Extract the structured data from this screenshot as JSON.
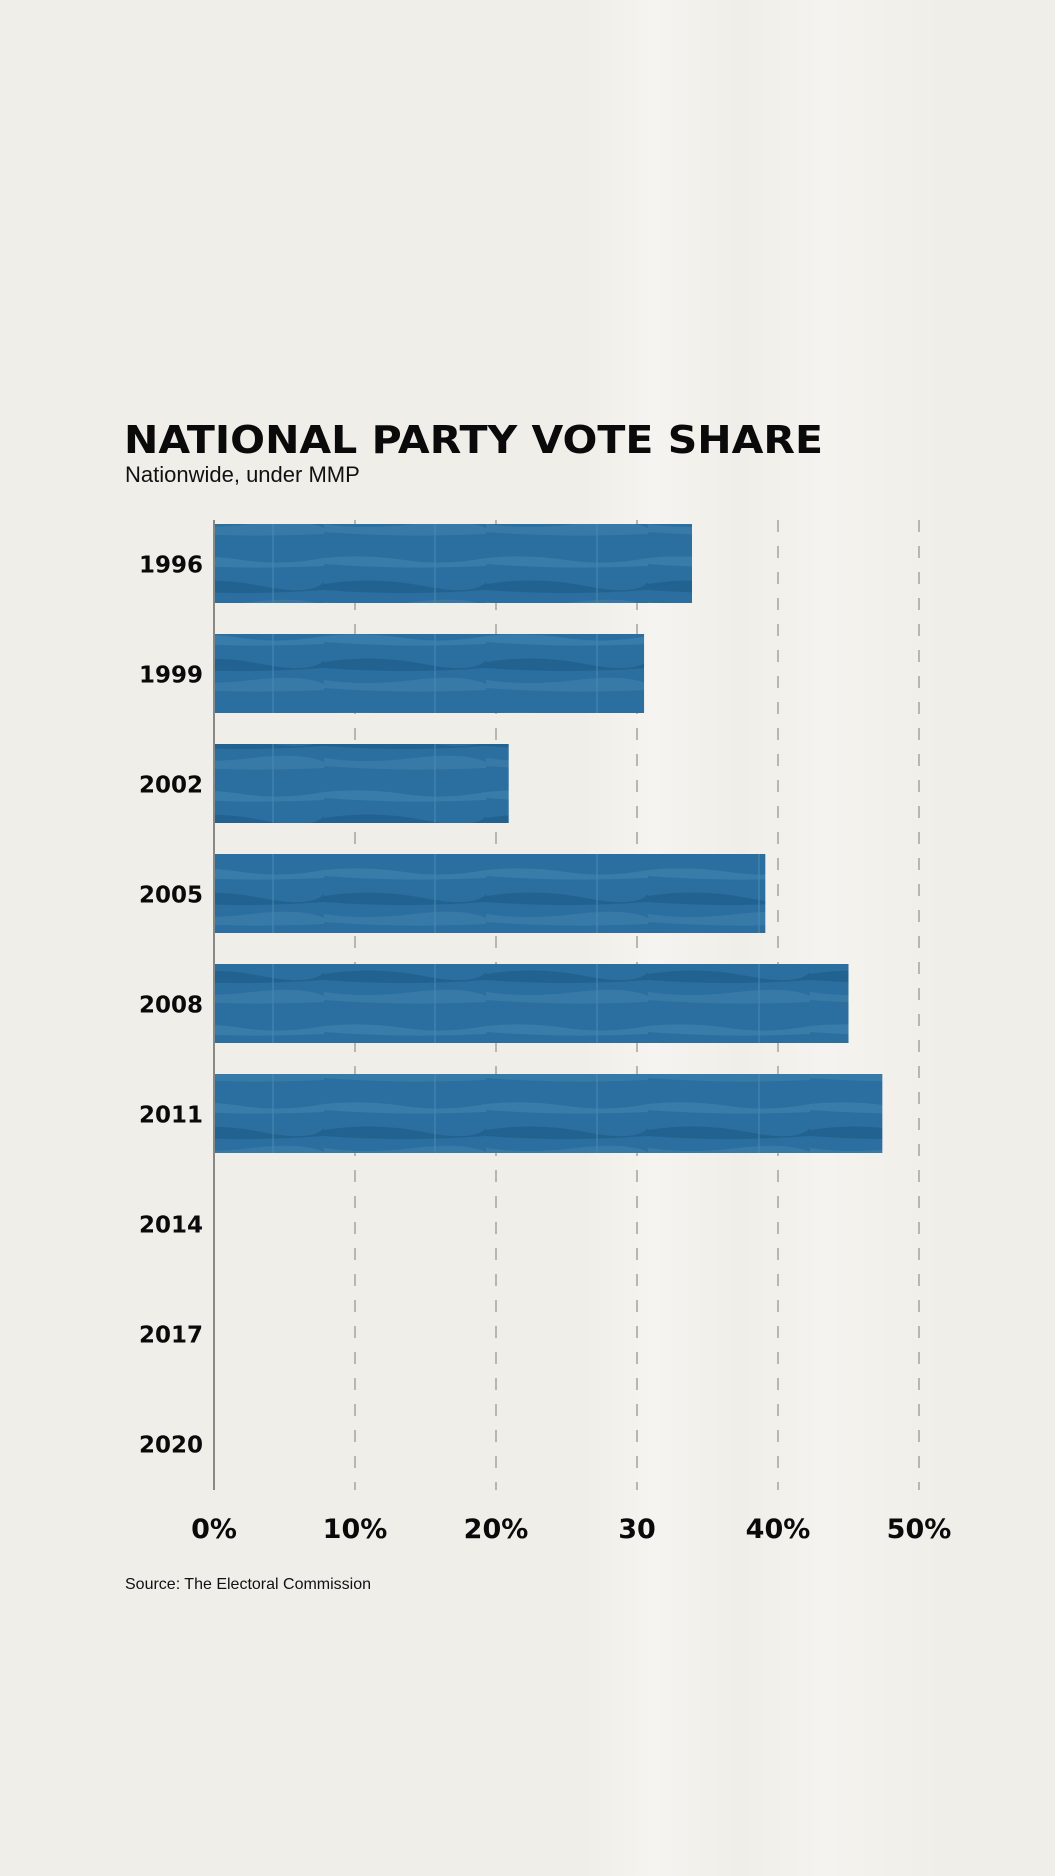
{
  "chart_data": {
    "type": "bar",
    "orientation": "horizontal",
    "title": "NATIONAL PARTY VOTE SHARE",
    "subtitle": "Nationwide, under MMP",
    "source": "Source: The Electoral Commission",
    "categories": [
      "1996",
      "1999",
      "2002",
      "2005",
      "2008",
      "2011",
      "2014",
      "2017",
      "2020"
    ],
    "values": [
      33.9,
      30.5,
      20.9,
      39.1,
      45.0,
      47.4,
      null,
      null,
      null
    ],
    "x_ticks": [
      0,
      10,
      20,
      30,
      40,
      50
    ],
    "x_tick_labels": [
      "0%",
      "10%",
      "20%",
      "30",
      "40%",
      "50%"
    ],
    "xlim": [
      0,
      50
    ],
    "grid": "vertical dashed",
    "bar_color": "#2a6f9f",
    "background_color": "#f0eee8"
  }
}
